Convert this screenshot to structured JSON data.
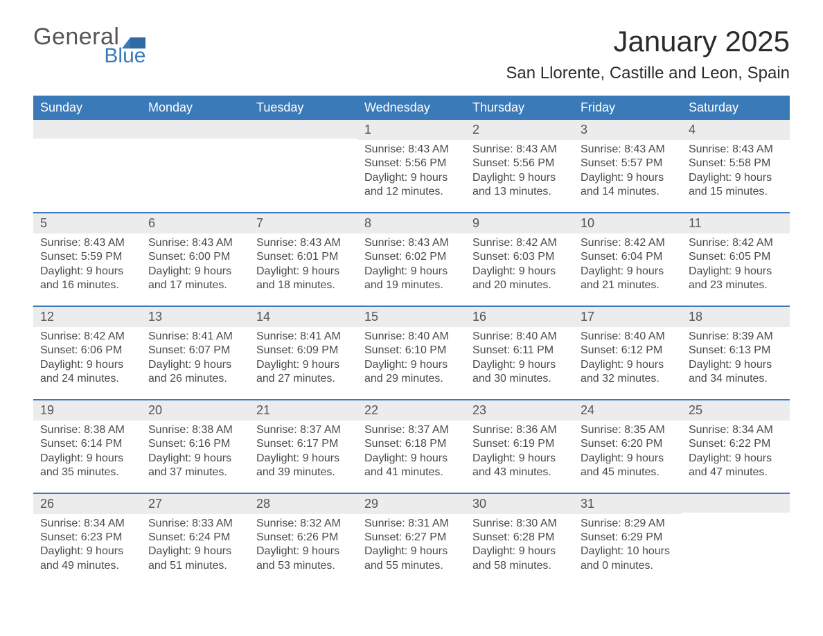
{
  "logo": {
    "word1": "General",
    "word2": "Blue",
    "mark_color": "#3a7ab8",
    "text1_color": "#555555"
  },
  "header": {
    "month_title": "January 2025",
    "location": "San Llorente, Castille and Leon, Spain"
  },
  "calendar": {
    "days_of_week": [
      "Sunday",
      "Monday",
      "Tuesday",
      "Wednesday",
      "Thursday",
      "Friday",
      "Saturday"
    ],
    "header_bg": "#3a7ab8",
    "header_text_color": "#ffffff",
    "daynum_bg": "#ececec",
    "rule_color": "#3a7ab8",
    "text_color": "#4a4a4a",
    "weeks": [
      [
        {
          "day": "",
          "sunrise": "",
          "sunset": "",
          "daylight1": "",
          "daylight2": ""
        },
        {
          "day": "",
          "sunrise": "",
          "sunset": "",
          "daylight1": "",
          "daylight2": ""
        },
        {
          "day": "",
          "sunrise": "",
          "sunset": "",
          "daylight1": "",
          "daylight2": ""
        },
        {
          "day": "1",
          "sunrise": "Sunrise: 8:43 AM",
          "sunset": "Sunset: 5:56 PM",
          "daylight1": "Daylight: 9 hours",
          "daylight2": "and 12 minutes."
        },
        {
          "day": "2",
          "sunrise": "Sunrise: 8:43 AM",
          "sunset": "Sunset: 5:56 PM",
          "daylight1": "Daylight: 9 hours",
          "daylight2": "and 13 minutes."
        },
        {
          "day": "3",
          "sunrise": "Sunrise: 8:43 AM",
          "sunset": "Sunset: 5:57 PM",
          "daylight1": "Daylight: 9 hours",
          "daylight2": "and 14 minutes."
        },
        {
          "day": "4",
          "sunrise": "Sunrise: 8:43 AM",
          "sunset": "Sunset: 5:58 PM",
          "daylight1": "Daylight: 9 hours",
          "daylight2": "and 15 minutes."
        }
      ],
      [
        {
          "day": "5",
          "sunrise": "Sunrise: 8:43 AM",
          "sunset": "Sunset: 5:59 PM",
          "daylight1": "Daylight: 9 hours",
          "daylight2": "and 16 minutes."
        },
        {
          "day": "6",
          "sunrise": "Sunrise: 8:43 AM",
          "sunset": "Sunset: 6:00 PM",
          "daylight1": "Daylight: 9 hours",
          "daylight2": "and 17 minutes."
        },
        {
          "day": "7",
          "sunrise": "Sunrise: 8:43 AM",
          "sunset": "Sunset: 6:01 PM",
          "daylight1": "Daylight: 9 hours",
          "daylight2": "and 18 minutes."
        },
        {
          "day": "8",
          "sunrise": "Sunrise: 8:43 AM",
          "sunset": "Sunset: 6:02 PM",
          "daylight1": "Daylight: 9 hours",
          "daylight2": "and 19 minutes."
        },
        {
          "day": "9",
          "sunrise": "Sunrise: 8:42 AM",
          "sunset": "Sunset: 6:03 PM",
          "daylight1": "Daylight: 9 hours",
          "daylight2": "and 20 minutes."
        },
        {
          "day": "10",
          "sunrise": "Sunrise: 8:42 AM",
          "sunset": "Sunset: 6:04 PM",
          "daylight1": "Daylight: 9 hours",
          "daylight2": "and 21 minutes."
        },
        {
          "day": "11",
          "sunrise": "Sunrise: 8:42 AM",
          "sunset": "Sunset: 6:05 PM",
          "daylight1": "Daylight: 9 hours",
          "daylight2": "and 23 minutes."
        }
      ],
      [
        {
          "day": "12",
          "sunrise": "Sunrise: 8:42 AM",
          "sunset": "Sunset: 6:06 PM",
          "daylight1": "Daylight: 9 hours",
          "daylight2": "and 24 minutes."
        },
        {
          "day": "13",
          "sunrise": "Sunrise: 8:41 AM",
          "sunset": "Sunset: 6:07 PM",
          "daylight1": "Daylight: 9 hours",
          "daylight2": "and 26 minutes."
        },
        {
          "day": "14",
          "sunrise": "Sunrise: 8:41 AM",
          "sunset": "Sunset: 6:09 PM",
          "daylight1": "Daylight: 9 hours",
          "daylight2": "and 27 minutes."
        },
        {
          "day": "15",
          "sunrise": "Sunrise: 8:40 AM",
          "sunset": "Sunset: 6:10 PM",
          "daylight1": "Daylight: 9 hours",
          "daylight2": "and 29 minutes."
        },
        {
          "day": "16",
          "sunrise": "Sunrise: 8:40 AM",
          "sunset": "Sunset: 6:11 PM",
          "daylight1": "Daylight: 9 hours",
          "daylight2": "and 30 minutes."
        },
        {
          "day": "17",
          "sunrise": "Sunrise: 8:40 AM",
          "sunset": "Sunset: 6:12 PM",
          "daylight1": "Daylight: 9 hours",
          "daylight2": "and 32 minutes."
        },
        {
          "day": "18",
          "sunrise": "Sunrise: 8:39 AM",
          "sunset": "Sunset: 6:13 PM",
          "daylight1": "Daylight: 9 hours",
          "daylight2": "and 34 minutes."
        }
      ],
      [
        {
          "day": "19",
          "sunrise": "Sunrise: 8:38 AM",
          "sunset": "Sunset: 6:14 PM",
          "daylight1": "Daylight: 9 hours",
          "daylight2": "and 35 minutes."
        },
        {
          "day": "20",
          "sunrise": "Sunrise: 8:38 AM",
          "sunset": "Sunset: 6:16 PM",
          "daylight1": "Daylight: 9 hours",
          "daylight2": "and 37 minutes."
        },
        {
          "day": "21",
          "sunrise": "Sunrise: 8:37 AM",
          "sunset": "Sunset: 6:17 PM",
          "daylight1": "Daylight: 9 hours",
          "daylight2": "and 39 minutes."
        },
        {
          "day": "22",
          "sunrise": "Sunrise: 8:37 AM",
          "sunset": "Sunset: 6:18 PM",
          "daylight1": "Daylight: 9 hours",
          "daylight2": "and 41 minutes."
        },
        {
          "day": "23",
          "sunrise": "Sunrise: 8:36 AM",
          "sunset": "Sunset: 6:19 PM",
          "daylight1": "Daylight: 9 hours",
          "daylight2": "and 43 minutes."
        },
        {
          "day": "24",
          "sunrise": "Sunrise: 8:35 AM",
          "sunset": "Sunset: 6:20 PM",
          "daylight1": "Daylight: 9 hours",
          "daylight2": "and 45 minutes."
        },
        {
          "day": "25",
          "sunrise": "Sunrise: 8:34 AM",
          "sunset": "Sunset: 6:22 PM",
          "daylight1": "Daylight: 9 hours",
          "daylight2": "and 47 minutes."
        }
      ],
      [
        {
          "day": "26",
          "sunrise": "Sunrise: 8:34 AM",
          "sunset": "Sunset: 6:23 PM",
          "daylight1": "Daylight: 9 hours",
          "daylight2": "and 49 minutes."
        },
        {
          "day": "27",
          "sunrise": "Sunrise: 8:33 AM",
          "sunset": "Sunset: 6:24 PM",
          "daylight1": "Daylight: 9 hours",
          "daylight2": "and 51 minutes."
        },
        {
          "day": "28",
          "sunrise": "Sunrise: 8:32 AM",
          "sunset": "Sunset: 6:26 PM",
          "daylight1": "Daylight: 9 hours",
          "daylight2": "and 53 minutes."
        },
        {
          "day": "29",
          "sunrise": "Sunrise: 8:31 AM",
          "sunset": "Sunset: 6:27 PM",
          "daylight1": "Daylight: 9 hours",
          "daylight2": "and 55 minutes."
        },
        {
          "day": "30",
          "sunrise": "Sunrise: 8:30 AM",
          "sunset": "Sunset: 6:28 PM",
          "daylight1": "Daylight: 9 hours",
          "daylight2": "and 58 minutes."
        },
        {
          "day": "31",
          "sunrise": "Sunrise: 8:29 AM",
          "sunset": "Sunset: 6:29 PM",
          "daylight1": "Daylight: 10 hours",
          "daylight2": "and 0 minutes."
        },
        {
          "day": "",
          "sunrise": "",
          "sunset": "",
          "daylight1": "",
          "daylight2": ""
        }
      ]
    ]
  }
}
